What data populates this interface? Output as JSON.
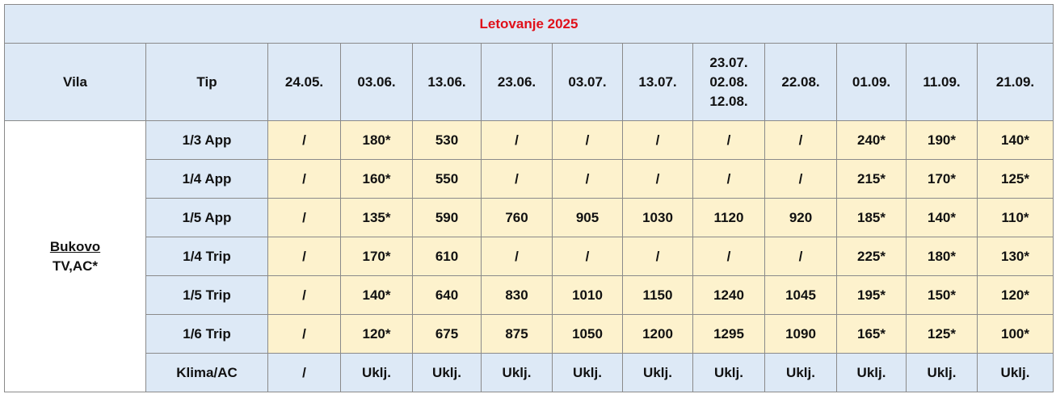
{
  "title": "Letovanje 2025",
  "headers": [
    "Vila",
    "Tip",
    "24.05.",
    "03.06.",
    "13.06.",
    "23.06.",
    "03.07.",
    "13.07.",
    "23.07.\n02.08.\n12.08.",
    "22.08.",
    "01.09.",
    "11.09.",
    "21.09."
  ],
  "vila": {
    "name": "Bukovo",
    "note": "TV,AC*"
  },
  "rows": [
    {
      "tip": "1/3 App",
      "values": [
        "/",
        "180*",
        "530",
        "/",
        "/",
        "/",
        "/",
        "/",
        "240*",
        "190*",
        "140*"
      ]
    },
    {
      "tip": "1/4 App",
      "values": [
        "/",
        "160*",
        "550",
        "/",
        "/",
        "/",
        "/",
        "/",
        "215*",
        "170*",
        "125*"
      ]
    },
    {
      "tip": "1/5 App",
      "values": [
        "/",
        "135*",
        "590",
        "760",
        "905",
        "1030",
        "1120",
        "920",
        "185*",
        "140*",
        "110*"
      ]
    },
    {
      "tip": "1/4 Trip",
      "values": [
        "/",
        "170*",
        "610",
        "/",
        "/",
        "/",
        "/",
        "/",
        "225*",
        "180*",
        "130*"
      ]
    },
    {
      "tip": "1/5 Trip",
      "values": [
        "/",
        "140*",
        "640",
        "830",
        "1010",
        "1150",
        "1240",
        "1045",
        "195*",
        "150*",
        "120*"
      ]
    },
    {
      "tip": "1/6 Trip",
      "values": [
        "/",
        "120*",
        "675",
        "875",
        "1050",
        "1200",
        "1295",
        "1090",
        "165*",
        "125*",
        "100*"
      ]
    },
    {
      "tip": "Klima/AC",
      "values": [
        "/",
        "Uklj.",
        "Uklj.",
        "Uklj.",
        "Uklj.",
        "Uklj.",
        "Uklj.",
        "Uklj.",
        "Uklj.",
        "Uklj.",
        "Uklj."
      ]
    }
  ]
}
